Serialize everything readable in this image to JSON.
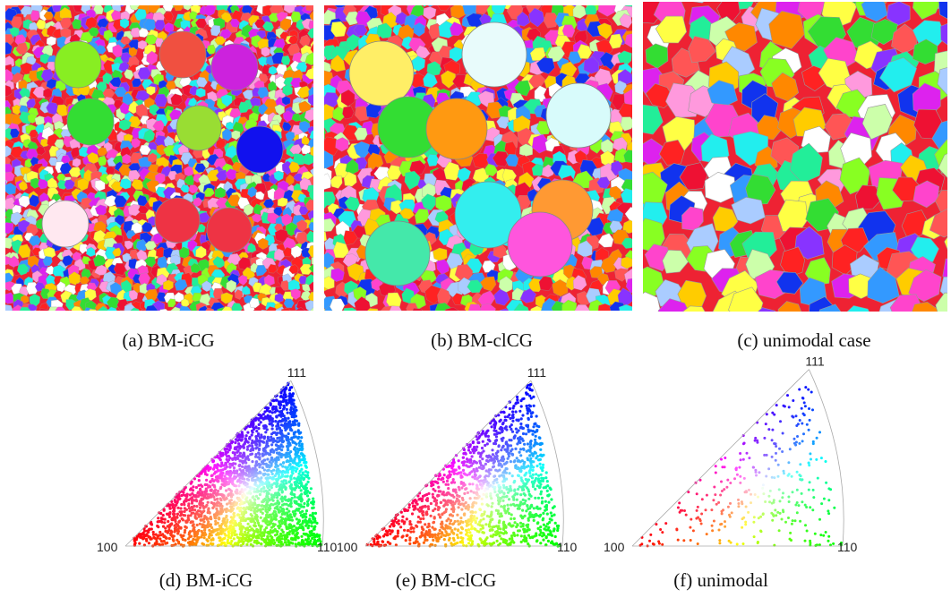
{
  "figure": {
    "panels": [
      {
        "id": "a",
        "caption": "(a)  BM-iCG",
        "kind": "microstructure",
        "grain_size": "fine",
        "large_grains": [
          {
            "color": "#88ee22"
          },
          {
            "color": "#f05040"
          },
          {
            "color": "#cc22dd"
          },
          {
            "color": "#33dd33"
          },
          {
            "color": "#99dd33"
          },
          {
            "color": "#1111ee"
          },
          {
            "color": "#ffe8f0"
          },
          {
            "color": "#ee3344"
          },
          {
            "color": "#ee3344"
          }
        ]
      },
      {
        "id": "b",
        "caption": "(b)  BM-clCG",
        "kind": "microstructure",
        "grain_size": "medium",
        "large_grains": [
          {
            "color": "#ffee66"
          },
          {
            "color": "#e8fbfb"
          },
          {
            "color": "#33dd33"
          },
          {
            "color": "#ff9911"
          },
          {
            "color": "#d8fbfb"
          },
          {
            "color": "#33eeee"
          },
          {
            "color": "#ff9933"
          },
          {
            "color": "#ff55dd"
          },
          {
            "color": "#44e8aa"
          }
        ]
      },
      {
        "id": "c",
        "caption": "(c)  unimodal case",
        "kind": "microstructure",
        "grain_size": "coarse",
        "large_grains": []
      },
      {
        "id": "d",
        "caption": "(d)  BM-iCG",
        "kind": "pole-figure",
        "density": "high"
      },
      {
        "id": "e",
        "caption": "(e)  BM-clCG",
        "kind": "pole-figure",
        "density": "medium"
      },
      {
        "id": "f",
        "caption": "(f)  unimodal",
        "kind": "pole-figure",
        "density": "low"
      }
    ],
    "triangle_labels": {
      "v100": "100",
      "v110": "110",
      "v111": "111"
    },
    "palette": [
      "#ff2222",
      "#ee1133",
      "#ff5555",
      "#ff8800",
      "#ffcc00",
      "#ffff44",
      "#88ff22",
      "#33dd33",
      "#22ee99",
      "#22eeee",
      "#3399ff",
      "#1133ee",
      "#8833ff",
      "#dd22ee",
      "#ff44cc",
      "#ff99dd",
      "#ffffff",
      "#aaccff",
      "#ccffaa"
    ]
  }
}
